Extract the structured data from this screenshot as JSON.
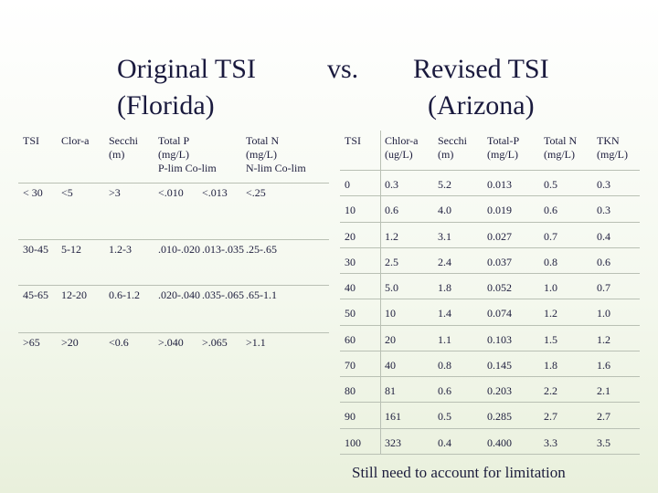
{
  "title": {
    "left": [
      "Original TSI",
      "(Florida)"
    ],
    "middle": "vs.",
    "right": [
      "Revised TSI",
      "(Arizona)"
    ]
  },
  "left_table": {
    "header": [
      [
        "TSI"
      ],
      [
        "Clor-a"
      ],
      [
        "Secchi",
        "(m)"
      ],
      [
        "Total P",
        "(mg/L)",
        "P-lim  Co-lim"
      ],
      [
        "Total N",
        "(mg/L)",
        "N-lim  Co-lim"
      ]
    ],
    "rows": [
      [
        "< 30",
        "<5",
        ">3",
        "<.010",
        "<.013",
        "<.25"
      ],
      [
        "30-45",
        "5-12",
        "1.2-3",
        ".010-.020",
        ".013-.035",
        ".25-.65"
      ],
      [
        "45-65",
        "12-20",
        "0.6-1.2",
        ".020-.040",
        ".035-.065",
        ".65-1.1"
      ],
      [
        ">65",
        ">20",
        "<0.6",
        ">.040",
        ">.065",
        ">1.1"
      ]
    ]
  },
  "right_table": {
    "header": [
      [
        "TSI"
      ],
      [
        "Chlor-a",
        "(ug/L)"
      ],
      [
        "Secchi",
        "(m)"
      ],
      [
        "Total-P",
        "(mg/L)"
      ],
      [
        "Total N",
        "(mg/L)"
      ],
      [
        "TKN",
        "(mg/L)"
      ]
    ],
    "rows": [
      [
        "0",
        "0.3",
        "5.2",
        "0.013",
        "0.5",
        "0.3"
      ],
      [
        "10",
        "0.6",
        "4.0",
        "0.019",
        "0.6",
        "0.3"
      ],
      [
        "20",
        "1.2",
        "3.1",
        "0.027",
        "0.7",
        "0.4"
      ],
      [
        "30",
        "2.5",
        "2.4",
        "0.037",
        "0.8",
        "0.6"
      ],
      [
        "40",
        "5.0",
        "1.8",
        "0.052",
        "1.0",
        "0.7"
      ],
      [
        "50",
        "10",
        "1.4",
        "0.074",
        "1.2",
        "1.0"
      ],
      [
        "60",
        "20",
        "1.1",
        "0.103",
        "1.5",
        "1.2"
      ],
      [
        "70",
        "40",
        "0.8",
        "0.145",
        "1.8",
        "1.6"
      ],
      [
        "80",
        "81",
        "0.6",
        "0.203",
        "2.2",
        "2.1"
      ],
      [
        "90",
        "161",
        "0.5",
        "0.285",
        "2.7",
        "2.7"
      ],
      [
        "100",
        "323",
        "0.4",
        "0.400",
        "3.3",
        "3.5"
      ]
    ]
  },
  "footnote": "Still need to account for limitation"
}
